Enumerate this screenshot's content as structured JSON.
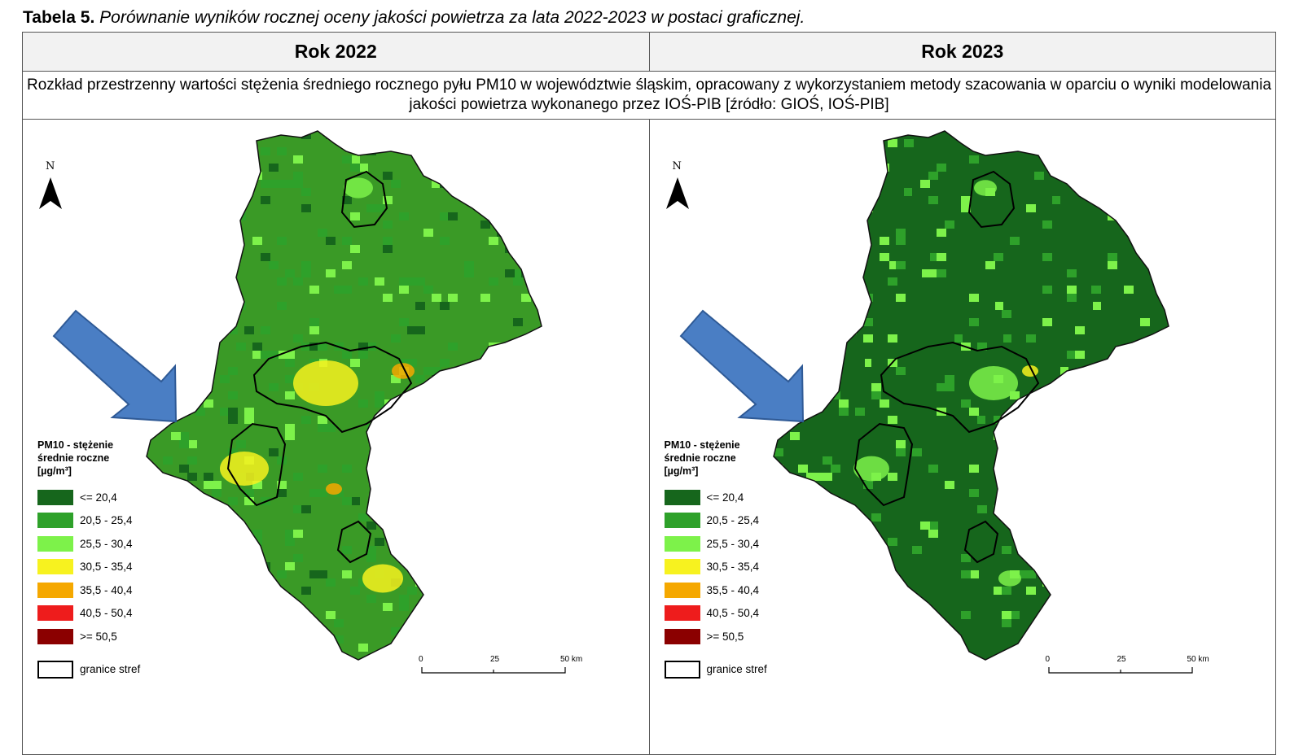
{
  "caption": {
    "label": "Tabela 5.",
    "text": "Porównanie wyników rocznej oceny jakości powietrza za lata 2022-2023 w postaci graficznej."
  },
  "columns": [
    "Rok 2022",
    "Rok 2023"
  ],
  "description": "Rozkład przestrzenny wartości stężenia średniego rocznego pyłu PM10 w województwie śląskim, opracowany z wykorzystaniem metody szacowania w oparciu o wyniki modelowania jakości powietrza wykonanego przez IOŚ-PIB [źródło: GIOŚ, IOŚ-PIB]",
  "maps": [
    {
      "legend": {
        "title_lines": [
          "PM10 - stężenie",
          "średnie roczne",
          "[µg/m³]"
        ],
        "classes": [
          {
            "label": "<= 20,4",
            "color": "#16661c"
          },
          {
            "label": "20,5 - 25,4",
            "color": "#2ea12a"
          },
          {
            "label": "25,5 - 30,4",
            "color": "#7df24a"
          },
          {
            "label": "30,5 - 35,4",
            "color": "#f7f21f"
          },
          {
            "label": "35,5 - 40,4",
            "color": "#f5a800"
          },
          {
            "label": "40,5 - 50,4",
            "color": "#ee1c1c"
          },
          {
            "label": ">= 50,5",
            "color": "#8b0000"
          }
        ],
        "border_label": "granice stref"
      },
      "north": "N",
      "scale": [
        "0",
        "25",
        "50 km"
      ],
      "dominant_color": "#3a9a26",
      "arrow_color": "#4a7ec4"
    },
    {
      "legend": {
        "title_lines": [
          "PM10 - stężenie",
          "średnie roczne",
          "[µg/m³]"
        ],
        "classes": [
          {
            "label": "<= 20,4",
            "color": "#16661c"
          },
          {
            "label": "20,5 - 25,4",
            "color": "#2ea12a"
          },
          {
            "label": "25,5 - 30,4",
            "color": "#7df24a"
          },
          {
            "label": "30,5 - 35,4",
            "color": "#f7f21f"
          },
          {
            "label": "35,5 - 40,4",
            "color": "#f5a800"
          },
          {
            "label": "40,5 - 50,4",
            "color": "#ee1c1c"
          },
          {
            "label": ">= 50,5",
            "color": "#8b0000"
          }
        ],
        "border_label": "granice stref"
      },
      "north": "N",
      "scale": [
        "0",
        "25",
        "50 km"
      ],
      "dominant_color": "#16661c",
      "arrow_color": "#4a7ec4"
    }
  ]
}
